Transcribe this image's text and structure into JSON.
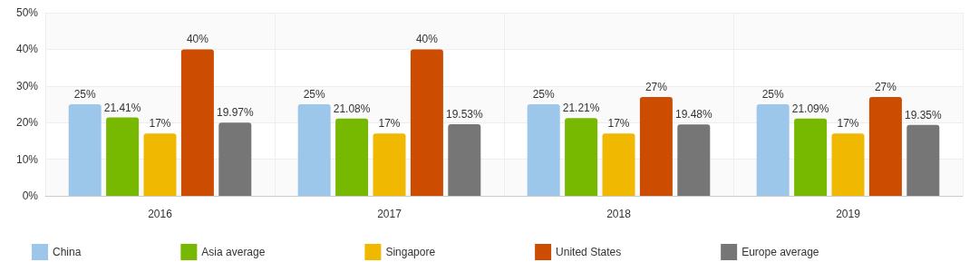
{
  "chart_data": {
    "type": "bar",
    "categories": [
      "2016",
      "2017",
      "2018",
      "2019"
    ],
    "series": [
      {
        "name": "China",
        "color": "#9cc7eb",
        "values": [
          25,
          25,
          25,
          25
        ],
        "value_labels": [
          "25%",
          "25%",
          "25%",
          "25%"
        ]
      },
      {
        "name": "Asia average",
        "color": "#76b900",
        "values": [
          21.41,
          21.08,
          21.21,
          21.09
        ],
        "value_labels": [
          "21.41%",
          "21.08%",
          "21.21%",
          "21.09%"
        ]
      },
      {
        "name": "Singapore",
        "color": "#f0b800",
        "values": [
          17,
          17,
          17,
          17
        ],
        "value_labels": [
          "17%",
          "17%",
          "17%",
          "17%"
        ]
      },
      {
        "name": "United States",
        "color": "#cc4c02",
        "values": [
          40,
          40,
          27,
          27
        ],
        "value_labels": [
          "40%",
          "40%",
          "27%",
          "27%"
        ]
      },
      {
        "name": "Europe average",
        "color": "#767676",
        "values": [
          19.97,
          19.53,
          19.48,
          19.35
        ],
        "value_labels": [
          "19.97%",
          "19.53%",
          "19.48%",
          "19.35%"
        ]
      }
    ],
    "ylim": [
      0,
      50
    ],
    "yticks": [
      {
        "value": 0,
        "label": "0%"
      },
      {
        "value": 10,
        "label": "10%"
      },
      {
        "value": 20,
        "label": "20%"
      },
      {
        "value": 30,
        "label": "30%"
      },
      {
        "value": 40,
        "label": "40%"
      },
      {
        "value": 50,
        "label": "50%"
      }
    ],
    "grid": true,
    "legend": "bottom"
  }
}
